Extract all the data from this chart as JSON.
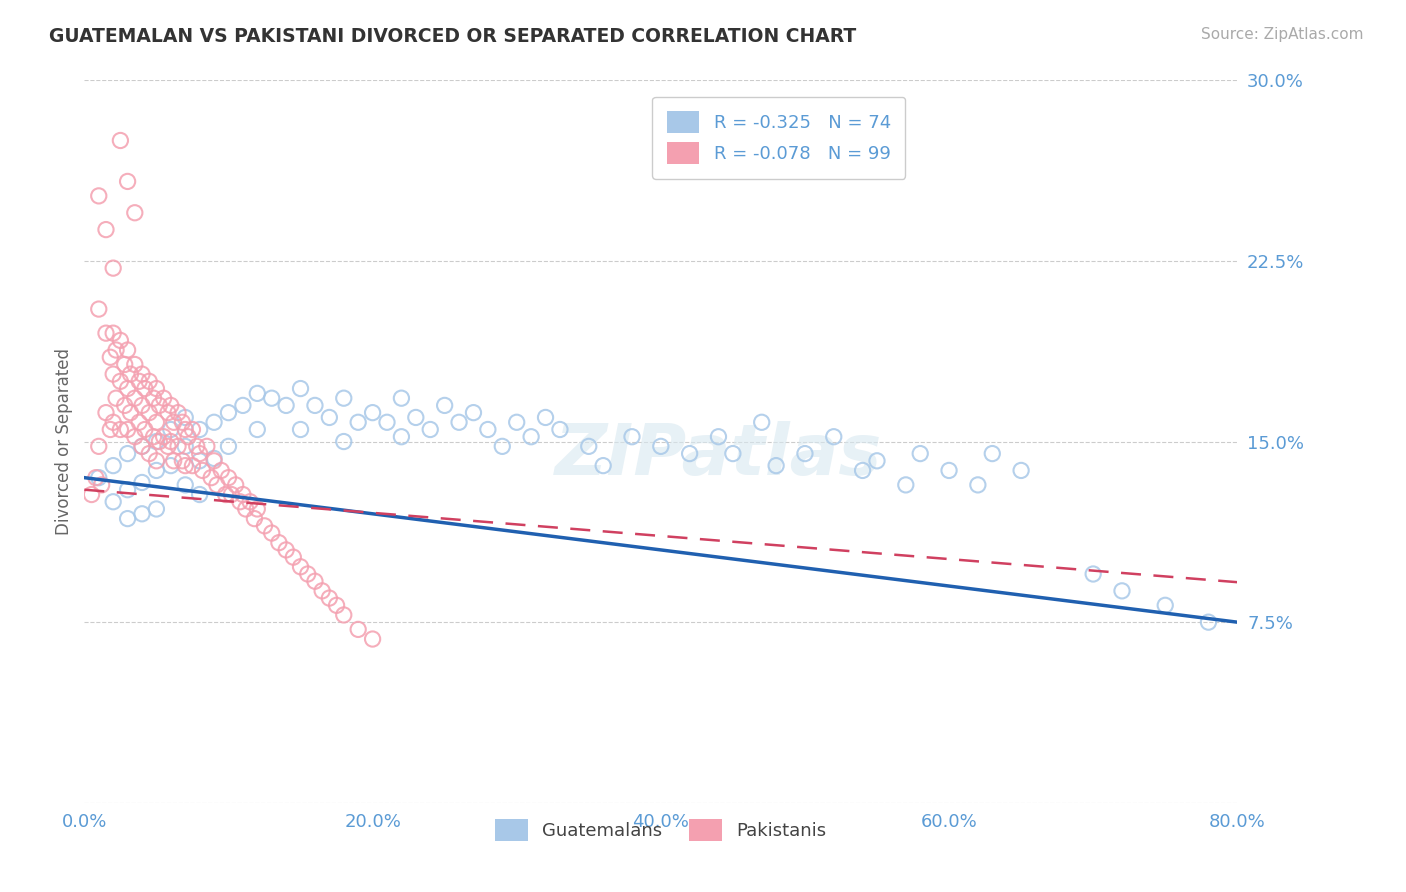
{
  "title": "GUATEMALAN VS PAKISTANI DIVORCED OR SEPARATED CORRELATION CHART",
  "source": "Source: ZipAtlas.com",
  "ylabel": "Divorced or Separated",
  "legend_entry1": "R = -0.325   N = 74",
  "legend_entry2": "R = -0.078   N = 99",
  "legend_label1": "Guatemalans",
  "legend_label2": "Pakistanis",
  "xlim": [
    0.0,
    0.8
  ],
  "ylim": [
    0.0,
    0.3
  ],
  "yticks": [
    0.0,
    0.075,
    0.15,
    0.225,
    0.3
  ],
  "ytick_labels": [
    "",
    "7.5%",
    "15.0%",
    "22.5%",
    "30.0%"
  ],
  "xticks": [
    0.0,
    0.2,
    0.4,
    0.6,
    0.8
  ],
  "xtick_labels": [
    "0.0%",
    "20.0%",
    "40.0%",
    "60.0%",
    "80.0%"
  ],
  "color_blue": "#a8c8e8",
  "color_pink": "#f4a0b0",
  "color_blue_line": "#2060b0",
  "color_pink_line": "#d04060",
  "title_color": "#333333",
  "axis_color": "#5b9bd5",
  "background_color": "#ffffff",
  "blue_x": [
    0.01,
    0.02,
    0.02,
    0.03,
    0.03,
    0.03,
    0.04,
    0.04,
    0.04,
    0.05,
    0.05,
    0.05,
    0.06,
    0.06,
    0.07,
    0.07,
    0.07,
    0.08,
    0.08,
    0.08,
    0.09,
    0.09,
    0.1,
    0.1,
    0.11,
    0.12,
    0.12,
    0.13,
    0.14,
    0.15,
    0.15,
    0.16,
    0.17,
    0.18,
    0.18,
    0.19,
    0.2,
    0.21,
    0.22,
    0.22,
    0.23,
    0.24,
    0.25,
    0.26,
    0.27,
    0.28,
    0.29,
    0.3,
    0.31,
    0.32,
    0.33,
    0.35,
    0.36,
    0.38,
    0.4,
    0.42,
    0.44,
    0.45,
    0.47,
    0.48,
    0.5,
    0.52,
    0.54,
    0.55,
    0.57,
    0.58,
    0.6,
    0.62,
    0.63,
    0.65,
    0.7,
    0.72,
    0.75,
    0.78
  ],
  "blue_y": [
    0.135,
    0.14,
    0.125,
    0.145,
    0.13,
    0.118,
    0.148,
    0.133,
    0.12,
    0.15,
    0.138,
    0.122,
    0.155,
    0.14,
    0.16,
    0.148,
    0.132,
    0.155,
    0.142,
    0.128,
    0.158,
    0.143,
    0.162,
    0.148,
    0.165,
    0.17,
    0.155,
    0.168,
    0.165,
    0.172,
    0.155,
    0.165,
    0.16,
    0.168,
    0.15,
    0.158,
    0.162,
    0.158,
    0.168,
    0.152,
    0.16,
    0.155,
    0.165,
    0.158,
    0.162,
    0.155,
    0.148,
    0.158,
    0.152,
    0.16,
    0.155,
    0.148,
    0.14,
    0.152,
    0.148,
    0.145,
    0.152,
    0.145,
    0.158,
    0.14,
    0.145,
    0.152,
    0.138,
    0.142,
    0.132,
    0.145,
    0.138,
    0.132,
    0.145,
    0.138,
    0.095,
    0.088,
    0.082,
    0.075
  ],
  "pink_x": [
    0.005,
    0.008,
    0.01,
    0.01,
    0.012,
    0.015,
    0.015,
    0.018,
    0.018,
    0.02,
    0.02,
    0.02,
    0.022,
    0.022,
    0.025,
    0.025,
    0.025,
    0.028,
    0.028,
    0.03,
    0.03,
    0.03,
    0.032,
    0.032,
    0.035,
    0.035,
    0.035,
    0.038,
    0.038,
    0.04,
    0.04,
    0.04,
    0.042,
    0.042,
    0.045,
    0.045,
    0.045,
    0.048,
    0.048,
    0.05,
    0.05,
    0.05,
    0.052,
    0.052,
    0.055,
    0.055,
    0.058,
    0.058,
    0.06,
    0.06,
    0.062,
    0.062,
    0.065,
    0.065,
    0.068,
    0.068,
    0.07,
    0.07,
    0.072,
    0.075,
    0.075,
    0.078,
    0.08,
    0.082,
    0.085,
    0.088,
    0.09,
    0.092,
    0.095,
    0.098,
    0.1,
    0.102,
    0.105,
    0.108,
    0.11,
    0.112,
    0.115,
    0.118,
    0.12,
    0.125,
    0.13,
    0.135,
    0.14,
    0.145,
    0.15,
    0.155,
    0.16,
    0.165,
    0.17,
    0.175,
    0.18,
    0.19,
    0.2,
    0.01,
    0.015,
    0.02,
    0.025,
    0.03,
    0.035
  ],
  "pink_y": [
    0.128,
    0.135,
    0.205,
    0.148,
    0.132,
    0.195,
    0.162,
    0.185,
    0.155,
    0.195,
    0.178,
    0.158,
    0.188,
    0.168,
    0.192,
    0.175,
    0.155,
    0.182,
    0.165,
    0.188,
    0.172,
    0.155,
    0.178,
    0.162,
    0.182,
    0.168,
    0.152,
    0.175,
    0.158,
    0.178,
    0.165,
    0.148,
    0.172,
    0.155,
    0.175,
    0.162,
    0.145,
    0.168,
    0.152,
    0.172,
    0.158,
    0.142,
    0.165,
    0.15,
    0.168,
    0.152,
    0.162,
    0.148,
    0.165,
    0.15,
    0.158,
    0.142,
    0.162,
    0.148,
    0.158,
    0.142,
    0.155,
    0.14,
    0.152,
    0.155,
    0.14,
    0.148,
    0.145,
    0.138,
    0.148,
    0.135,
    0.142,
    0.132,
    0.138,
    0.128,
    0.135,
    0.128,
    0.132,
    0.125,
    0.128,
    0.122,
    0.125,
    0.118,
    0.122,
    0.115,
    0.112,
    0.108,
    0.105,
    0.102,
    0.098,
    0.095,
    0.092,
    0.088,
    0.085,
    0.082,
    0.078,
    0.072,
    0.068,
    0.252,
    0.238,
    0.222,
    0.275,
    0.258,
    0.245
  ],
  "watermark_text": "ZIPatlas"
}
